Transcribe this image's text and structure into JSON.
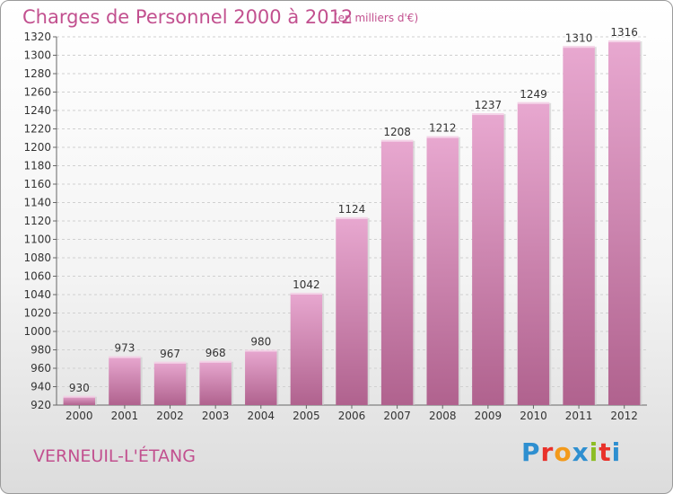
{
  "brand": {
    "letters": [
      "P",
      "r",
      "o",
      "x",
      "i",
      "t",
      "i"
    ],
    "colors": [
      "#2e8fd0",
      "#e9312a",
      "#f39a1b",
      "#2e8fd0",
      "#8dbd24",
      "#e9312a",
      "#2e8fd0"
    ]
  },
  "colors": {
    "bar_top": "#e8a8d0",
    "bar_bottom": "#b0628e",
    "text": "#c2508f"
  },
  "chart_data": {
    "type": "bar",
    "title": "Charges de Personnel 2000 à 2012",
    "subtitle": "(en milliers d'€)",
    "location": "VERNEUIL-L'ÉTANG",
    "xlabel": "",
    "ylabel": "",
    "categories": [
      "2000",
      "2001",
      "2002",
      "2003",
      "2004",
      "2005",
      "2006",
      "2007",
      "2008",
      "2009",
      "2010",
      "2011",
      "2012"
    ],
    "values": [
      930,
      973,
      967,
      968,
      980,
      1042,
      1124,
      1208,
      1212,
      1237,
      1249,
      1310,
      1316
    ],
    "ylim": [
      920,
      1320
    ],
    "ytick_step": 20,
    "grid": true
  }
}
